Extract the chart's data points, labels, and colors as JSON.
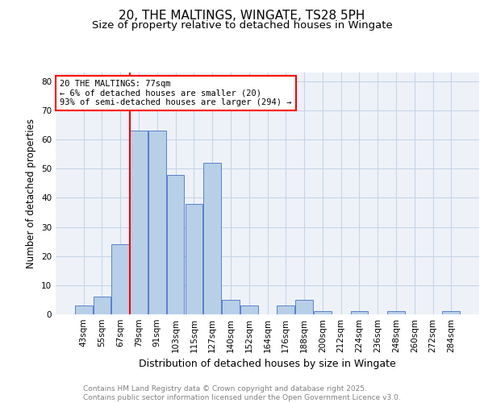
{
  "title": "20, THE MALTINGS, WINGATE, TS28 5PH",
  "subtitle": "Size of property relative to detached houses in Wingate",
  "xlabel": "Distribution of detached houses by size in Wingate",
  "ylabel": "Number of detached properties",
  "categories": [
    "43sqm",
    "55sqm",
    "67sqm",
    "79sqm",
    "91sqm",
    "103sqm",
    "115sqm",
    "127sqm",
    "140sqm",
    "152sqm",
    "164sqm",
    "176sqm",
    "188sqm",
    "200sqm",
    "212sqm",
    "224sqm",
    "236sqm",
    "248sqm",
    "260sqm",
    "272sqm",
    "284sqm"
  ],
  "values": [
    3,
    6,
    24,
    63,
    63,
    48,
    38,
    52,
    5,
    3,
    0,
    3,
    5,
    1,
    0,
    1,
    0,
    1,
    0,
    0,
    1
  ],
  "bar_color": "#b8cfe8",
  "bar_edge_color": "#4472c4",
  "grid_color": "#c8d4e8",
  "bg_color": "#eef2f8",
  "vline_color": "red",
  "annotation_text": "20 THE MALTINGS: 77sqm\n← 6% of detached houses are smaller (20)\n93% of semi-detached houses are larger (294) →",
  "annotation_box_color": "white",
  "annotation_box_edge": "red",
  "footer": "Contains HM Land Registry data © Crown copyright and database right 2025.\nContains public sector information licensed under the Open Government Licence v3.0.",
  "ylim": [
    0,
    83
  ],
  "title_fontsize": 11,
  "subtitle_fontsize": 9.5,
  "xlabel_fontsize": 9,
  "ylabel_fontsize": 8.5,
  "tick_fontsize": 7.5,
  "footer_fontsize": 6.5
}
